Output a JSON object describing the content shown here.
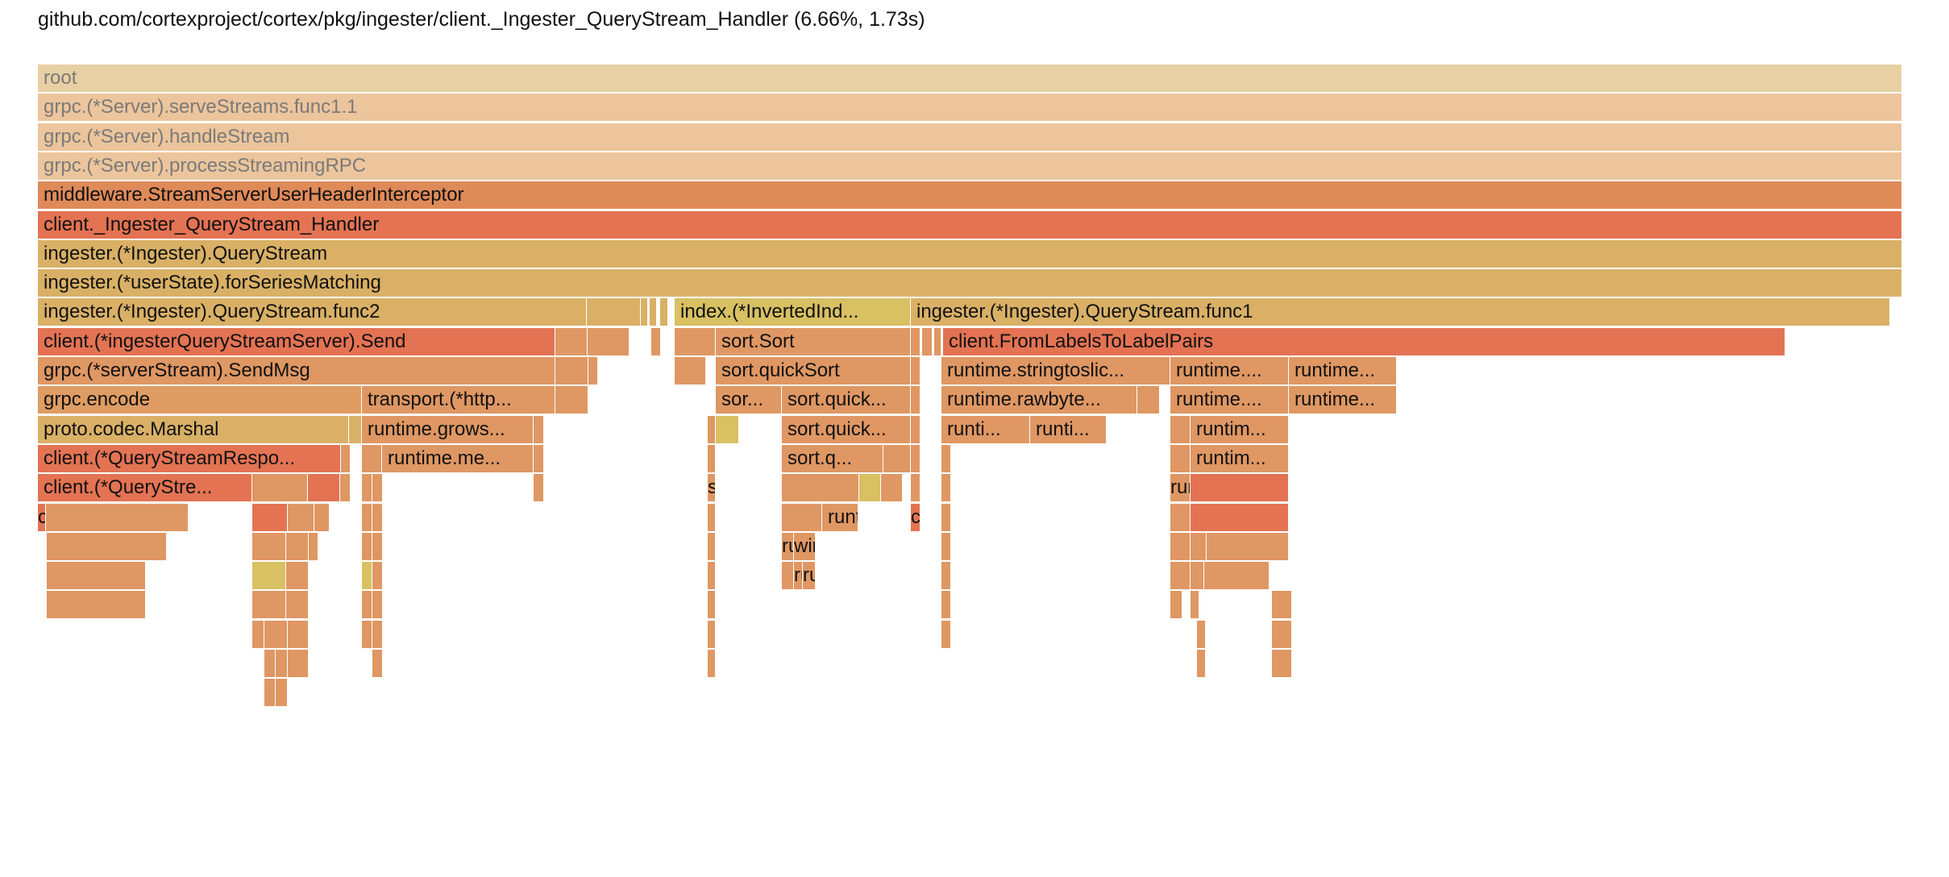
{
  "header": {
    "title": "github.com/cortexproject/cortex/pkg/ingester/client._Ingester_QueryStream_Handler (6.66%, 1.73s)"
  },
  "flamegraph": {
    "frames": [
      {
        "label": "root",
        "color": "#e8d0a4",
        "dim": true
      },
      {
        "label": "grpc.(*Server).serveStreams.func1.1",
        "color": "#ecc59c",
        "dim": true
      },
      {
        "label": "grpc.(*Server).handleStream",
        "color": "#ecc59c",
        "dim": true
      },
      {
        "label": "grpc.(*Server).processStreamingRPC",
        "color": "#ecc59c",
        "dim": true
      },
      {
        "label": "middleware.StreamServerUserHeaderInterceptor",
        "color": "#df8a59"
      },
      {
        "label": "client._Ingester_QueryStream_Handler",
        "color": "#e37353"
      },
      {
        "label": "ingester.(*Ingester).QueryStream",
        "color": "#d9b066"
      },
      {
        "label": "ingester.(*userState).forSeriesMatching",
        "color": "#d9b066"
      },
      {
        "label": "ingester.(*Ingester).QueryStream.func2",
        "color": "#d9b066"
      },
      {
        "label": "",
        "color": "#d9b066"
      },
      {
        "label": "",
        "color": "#d9b066"
      },
      {
        "label": "",
        "color": "#d9b066"
      },
      {
        "label": "",
        "color": "#d9b066"
      },
      {
        "label": "index.(*InvertedInd...",
        "color": "#d8c063"
      },
      {
        "label": "ingester.(*Ingester).QueryStream.func1",
        "color": "#d9b066"
      },
      {
        "label": "client.(*ingesterQueryStreamServer).Send",
        "color": "#e37353"
      },
      {
        "label": "",
        "color": "#df9763"
      },
      {
        "label": "",
        "color": "#df9763"
      },
      {
        "label": "",
        "color": "#df9763"
      },
      {
        "label": "",
        "color": "#df9763"
      },
      {
        "label": "sort.Sort",
        "color": "#df9763"
      },
      {
        "label": "",
        "color": "#df9763"
      },
      {
        "label": "",
        "color": "#df9763"
      },
      {
        "label": "",
        "color": "#df9763"
      },
      {
        "label": "client.FromLabelsToLabelPairs",
        "color": "#e37353"
      },
      {
        "label": "grpc.(*serverStream).SendMsg",
        "color": "#df9763"
      },
      {
        "label": "",
        "color": "#df9763"
      },
      {
        "label": "",
        "color": "#df9763"
      },
      {
        "label": "",
        "color": "#df9763"
      },
      {
        "label": "sort.quickSort",
        "color": "#df9763"
      },
      {
        "label": "",
        "color": "#df9763"
      },
      {
        "label": "runtime.stringtoslic...",
        "color": "#df9763"
      },
      {
        "label": "runtime....",
        "color": "#df9763"
      },
      {
        "label": "runtime...",
        "color": "#df9763"
      },
      {
        "label": "grpc.encode",
        "color": "#df9d63"
      },
      {
        "label": "transport.(*http...",
        "color": "#df9763"
      },
      {
        "label": "",
        "color": "#df9763"
      },
      {
        "label": "sor...",
        "color": "#df9763"
      },
      {
        "label": "sort.quick...",
        "color": "#df9763"
      },
      {
        "label": "",
        "color": "#df9763"
      },
      {
        "label": "runtime.rawbyte...",
        "color": "#df9763"
      },
      {
        "label": "",
        "color": "#df9763"
      },
      {
        "label": "runtime....",
        "color": "#df9763"
      },
      {
        "label": "runtime...",
        "color": "#df9763"
      },
      {
        "label": "proto.codec.Marshal",
        "color": "#d9b066"
      },
      {
        "label": "",
        "color": "#d9b066"
      },
      {
        "label": "runtime.grows...",
        "color": "#df9763"
      },
      {
        "label": "",
        "color": "#df9763"
      },
      {
        "label": "",
        "color": "#df9763"
      },
      {
        "label": "",
        "color": "#d8c063"
      },
      {
        "label": "sort.quick...",
        "color": "#df9763"
      },
      {
        "label": "",
        "color": "#df9763"
      },
      {
        "label": "runti...",
        "color": "#df9763"
      },
      {
        "label": "runti...",
        "color": "#df9763"
      },
      {
        "label": "",
        "color": "#df9763"
      },
      {
        "label": "runtim...",
        "color": "#df9763"
      },
      {
        "label": "client.(*QueryStreamRespo...",
        "color": "#e37353"
      },
      {
        "label": "",
        "color": "#df9763"
      },
      {
        "label": "",
        "color": "#df9763"
      },
      {
        "label": "runtime.me...",
        "color": "#df9763"
      },
      {
        "label": "",
        "color": "#df9763"
      },
      {
        "label": "",
        "color": "#df9763"
      },
      {
        "label": "sort.q...",
        "color": "#df9763"
      },
      {
        "label": "",
        "color": "#df9763"
      },
      {
        "label": "",
        "color": "#df9763"
      },
      {
        "label": "",
        "color": "#df9763"
      },
      {
        "label": "",
        "color": "#df9763"
      },
      {
        "label": "runtim...",
        "color": "#df9763"
      },
      {
        "label": "client.(*QueryStre...",
        "color": "#e37353"
      },
      {
        "label": "",
        "color": "#df9763"
      },
      {
        "label": "",
        "color": "#e37353"
      },
      {
        "label": "",
        "color": "#df9763"
      },
      {
        "label": "",
        "color": "#df9763"
      },
      {
        "label": "",
        "color": "#df9763"
      },
      {
        "label": "",
        "color": "#df9763"
      },
      {
        "label": "sort....",
        "color": "#df9763"
      },
      {
        "label": "",
        "color": "#df9763"
      },
      {
        "label": "",
        "color": "#d8c063"
      },
      {
        "label": "",
        "color": "#df9763"
      },
      {
        "label": "",
        "color": "#df9763"
      },
      {
        "label": "",
        "color": "#df9763"
      },
      {
        "label": "runtim...",
        "color": "#df9763"
      },
      {
        "label": "",
        "color": "#e37353"
      },
      {
        "label": "client.(*Ti...",
        "color": "#e37353"
      },
      {
        "label": "",
        "color": "#df9763"
      },
      {
        "label": "",
        "color": "#e37353"
      },
      {
        "label": "",
        "color": "#df9763"
      },
      {
        "label": "",
        "color": "#df9763"
      },
      {
        "label": "",
        "color": "#df9763"
      },
      {
        "label": "",
        "color": "#df9763"
      },
      {
        "label": "",
        "color": "#df9763"
      },
      {
        "label": "",
        "color": "#df9763"
      },
      {
        "label": "runtim...",
        "color": "#df9763"
      },
      {
        "label": "client.(*...",
        "color": "#e37353"
      },
      {
        "label": "",
        "color": "#df9763"
      },
      {
        "label": "",
        "color": "#df9763"
      },
      {
        "label": "",
        "color": "#e37353"
      },
      {
        "label": "",
        "color": "#df9763"
      },
      {
        "label": "",
        "color": "#df9763"
      },
      {
        "label": "",
        "color": "#df9763"
      },
      {
        "label": "",
        "color": "#df9763"
      },
      {
        "label": "",
        "color": "#df9763"
      },
      {
        "label": "",
        "color": "#df9763"
      },
      {
        "label": "",
        "color": "#df9763"
      },
      {
        "label": "runti...",
        "color": "#df9763"
      },
      {
        "label": "wire.(...",
        "color": "#df9763"
      },
      {
        "label": "",
        "color": "#df9763"
      },
      {
        "label": "",
        "color": "#df9763"
      },
      {
        "label": "",
        "color": "#df9763"
      },
      {
        "label": "",
        "color": "#df9763"
      },
      {
        "label": "",
        "color": "#df9763"
      },
      {
        "label": "",
        "color": "#d8c063"
      },
      {
        "label": "",
        "color": "#df9763"
      },
      {
        "label": "",
        "color": "#d8c063"
      },
      {
        "label": "",
        "color": "#df9763"
      },
      {
        "label": "",
        "color": "#df9763"
      },
      {
        "label": "",
        "color": "#df9763"
      },
      {
        "label": "run...",
        "color": "#df9763"
      },
      {
        "label": "runtim...",
        "color": "#df9763"
      },
      {
        "label": "",
        "color": "#df9763"
      },
      {
        "label": "",
        "color": "#df9763"
      },
      {
        "label": "",
        "color": "#df9763"
      },
      {
        "label": "",
        "color": "#df9763"
      },
      {
        "label": "",
        "color": "#df9763"
      },
      {
        "label": "",
        "color": "#df9763"
      },
      {
        "label": "",
        "color": "#df9763"
      },
      {
        "label": "",
        "color": "#df9763"
      },
      {
        "label": "",
        "color": "#df9763"
      },
      {
        "label": "",
        "color": "#df9763"
      },
      {
        "label": "",
        "color": "#df9763"
      },
      {
        "label": "",
        "color": "#df9763"
      },
      {
        "label": "",
        "color": "#df9763"
      },
      {
        "label": "",
        "color": "#df9763"
      },
      {
        "label": "",
        "color": "#df9763"
      },
      {
        "label": "",
        "color": "#df9763"
      },
      {
        "label": "",
        "color": "#df9763"
      },
      {
        "label": "",
        "color": "#df9763"
      },
      {
        "label": "",
        "color": "#df9763"
      },
      {
        "label": "",
        "color": "#df9763"
      },
      {
        "label": "",
        "color": "#df9763"
      },
      {
        "label": "",
        "color": "#df9763"
      },
      {
        "label": "",
        "color": "#df9763"
      },
      {
        "label": "",
        "color": "#df9763"
      },
      {
        "label": "",
        "color": "#df9763"
      },
      {
        "label": "",
        "color": "#df9763"
      },
      {
        "label": "",
        "color": "#df9763"
      },
      {
        "label": "",
        "color": "#df9763"
      },
      {
        "label": "",
        "color": "#df9763"
      },
      {
        "label": "",
        "color": "#df9763"
      },
      {
        "label": "",
        "color": "#df9763"
      },
      {
        "label": "",
        "color": "#df9763"
      }
    ]
  }
}
